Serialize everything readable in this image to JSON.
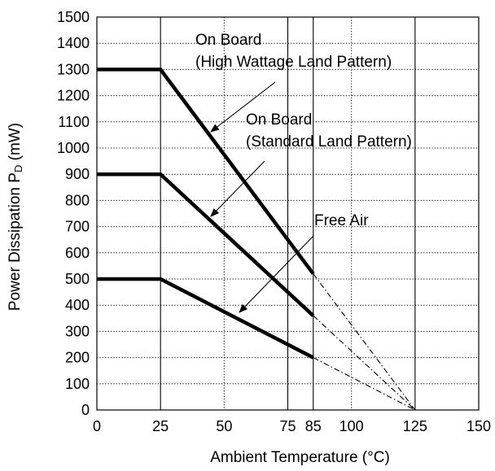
{
  "chart_data": {
    "type": "line",
    "title": "",
    "xlabel": "Ambient Temperature (°C)",
    "ylabel_main": "Power Dissipation P",
    "ylabel_sub": "D",
    "ylabel_unit": " (mW)",
    "xlim": [
      0,
      150
    ],
    "ylim": [
      0,
      1500
    ],
    "x_ticks": [
      0,
      25,
      50,
      75,
      85,
      100,
      125,
      150
    ],
    "x_tick_labels": [
      "0",
      "25",
      "50",
      "75",
      "85",
      "100",
      "125",
      "150"
    ],
    "y_ticks": [
      0,
      100,
      200,
      300,
      400,
      500,
      600,
      700,
      800,
      900,
      1000,
      1100,
      1200,
      1300,
      1400,
      1500
    ],
    "y_tick_labels": [
      "0",
      "100",
      "200",
      "300",
      "400",
      "500",
      "600",
      "700",
      "800",
      "900",
      "1000",
      "1100",
      "1200",
      "1300",
      "1400",
      "1500"
    ],
    "grid_x_solid": [
      25,
      75,
      85,
      125
    ],
    "grid_x_dotted": [
      50,
      100
    ],
    "grid_y": "dotted",
    "series": [
      {
        "name": "On Board (High Wattage Land Pattern)",
        "x": [
          0,
          25,
          85
        ],
        "y": [
          1300,
          1300,
          520
        ],
        "derating_x": [
          85,
          125
        ],
        "derating_y": [
          520,
          0
        ]
      },
      {
        "name": "On Board (Standard Land Pattern)",
        "x": [
          0,
          25,
          85
        ],
        "y": [
          900,
          900,
          360
        ],
        "derating_x": [
          85,
          125
        ],
        "derating_y": [
          360,
          0
        ]
      },
      {
        "name": "Free Air",
        "x": [
          0,
          25,
          85
        ],
        "y": [
          500,
          500,
          200
        ],
        "derating_x": [
          85,
          125
        ],
        "derating_y": [
          200,
          0
        ]
      }
    ],
    "annotations": [
      {
        "lines": [
          "On Board",
          "(High Wattage Land Pattern)"
        ],
        "series": 0
      },
      {
        "lines": [
          "On Board",
          "(Standard Land Pattern)"
        ],
        "series": 1
      },
      {
        "lines": [
          "Free Air"
        ],
        "series": 2
      }
    ]
  }
}
